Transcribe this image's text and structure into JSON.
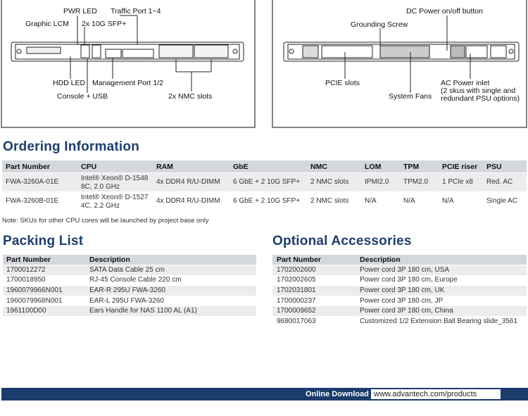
{
  "front_panel": {
    "labels": [
      "PWR LED",
      "Traffic Port 1~4",
      "Graphic LCM",
      "2x 10G SFP+",
      "HDD LED",
      "Management Port 1/2",
      "Console + USB",
      "2x NMC slots"
    ]
  },
  "rear_panel": {
    "labels": [
      "DC Power on/off button",
      "Grounding Screw",
      "PCIE slots",
      "System Fans"
    ],
    "ac_inlet": [
      "AC Power inlet",
      "(2 skus with single and",
      "redundant PSU options)"
    ]
  },
  "ordering": {
    "title": "Ordering Information",
    "headers": [
      "Part Number",
      "CPU",
      "RAM",
      "GbE",
      "NMC",
      "LOM",
      "TPM",
      "PCIE riser",
      "PSU"
    ],
    "rows": [
      [
        "FWA-3260A-01E",
        [
          "Intel® Xeon® D-1548",
          "8C, 2.0 GHz"
        ],
        "4x DDR4 R/U-DIMM",
        "6 GbE + 2 10G SFP+",
        "2 NMC slots",
        "IPMI2.0",
        "TPM2.0",
        "1 PCIe x8",
        "Red. AC"
      ],
      [
        "FWA-3260B-01E",
        [
          "Intel® Xeon® D-1527",
          "4C, 2.2 GHz"
        ],
        "4x DDR4 R/U-DIMM",
        "6 GbE + 2 10G SFP+",
        "2 NMC slots",
        "N/A",
        "N/A",
        "N/A",
        "Single AC"
      ]
    ],
    "note": "Note: SKUs for other CPU cores will be launched by project base only"
  },
  "packing": {
    "title": "Packing List",
    "headers": [
      "Part Number",
      "Description"
    ],
    "rows": [
      [
        "1700012272",
        "SATA Data Cable 25 cm"
      ],
      [
        "1700018950",
        "RJ-45 Console Cable 220 cm"
      ],
      [
        "1960079966N001",
        "EAR-R 295U FWA-3260"
      ],
      [
        "1960079968N001",
        "EAR-L 295U FWA-3260"
      ],
      [
        "1961100D00",
        "Ears Handle for NAS 1100 AL (A1)"
      ]
    ]
  },
  "accessories": {
    "title": "Optional Accessories",
    "headers": [
      "Part Number",
      "Description"
    ],
    "rows": [
      [
        "1702002600",
        "Power cord 3P 180 cm, USA"
      ],
      [
        "1702002605",
        "Power cord 3P 180 cm, Europe"
      ],
      [
        "1702031801",
        "Power cord 3P 180 cm, UK"
      ],
      [
        "1700000237",
        "Power cord 3P 180 cm, JP"
      ],
      [
        "1700009652",
        "Power cord 3P 180 cm, China"
      ],
      [
        "9680017063",
        "Customized 1/2 Extension Ball Bearing slide_3561"
      ]
    ]
  },
  "footer": {
    "label": "Online Download",
    "url": "www.advantech.com/products"
  }
}
